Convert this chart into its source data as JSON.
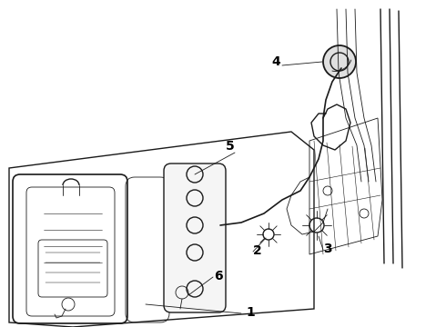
{
  "bg_color": "#ffffff",
  "line_color": "#1a1a1a",
  "label_color": "#000000",
  "lw_main": 1.0,
  "lw_thin": 0.6,
  "figsize": [
    4.9,
    3.6
  ],
  "dpi": 100
}
